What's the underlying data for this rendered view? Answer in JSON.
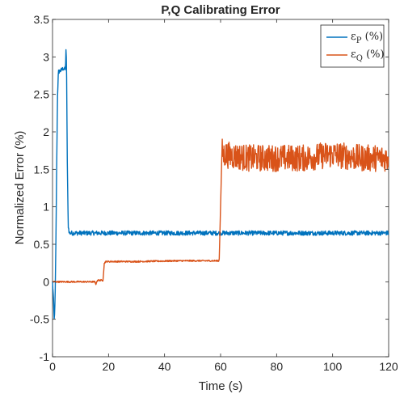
{
  "chart_data": {
    "type": "line",
    "title": "P,Q Calibrating Error",
    "xlabel": "Time (s)",
    "ylabel": "Normalized Error (%)",
    "xlim": [
      0,
      120
    ],
    "ylim": [
      -1,
      3.5
    ],
    "xticks": [
      0,
      20,
      40,
      60,
      80,
      100,
      120
    ],
    "yticks": [
      -1,
      -0.5,
      0,
      0.5,
      1,
      1.5,
      2,
      2.5,
      3,
      3.5
    ],
    "grid": false,
    "legend_position": "top-right",
    "series": [
      {
        "name": "εP (%)",
        "symbol": "ε",
        "subscript": "P",
        "suffix": " (%)",
        "color": "#0072BD",
        "noise_amplitude": 0.03,
        "points": [
          [
            0,
            0.0
          ],
          [
            0.3,
            -0.2
          ],
          [
            0.6,
            -0.5
          ],
          [
            0.9,
            -0.3
          ],
          [
            1.2,
            0.5
          ],
          [
            1.5,
            1.6
          ],
          [
            1.8,
            2.5
          ],
          [
            2.1,
            2.8
          ],
          [
            3,
            2.82
          ],
          [
            4,
            2.85
          ],
          [
            4.6,
            2.82
          ],
          [
            4.8,
            3.1
          ],
          [
            5,
            2.9
          ],
          [
            5.3,
            1.5
          ],
          [
            5.6,
            0.75
          ],
          [
            6,
            0.65
          ],
          [
            10,
            0.65
          ],
          [
            20,
            0.65
          ],
          [
            40,
            0.65
          ],
          [
            60,
            0.65
          ],
          [
            80,
            0.65
          ],
          [
            100,
            0.65
          ],
          [
            120,
            0.65
          ]
        ]
      },
      {
        "name": "εQ (%)",
        "symbol": "ε",
        "subscript": "Q",
        "suffix": " (%)",
        "color": "#D95319",
        "noise_amplitude": 0.01,
        "points": [
          [
            0,
            0.0
          ],
          [
            15,
            0.0
          ],
          [
            15.5,
            -0.03
          ],
          [
            16,
            0.02
          ],
          [
            17,
            0.02
          ],
          [
            18,
            0.02
          ],
          [
            18.5,
            0.25
          ],
          [
            19,
            0.27
          ],
          [
            30,
            0.27
          ],
          [
            45,
            0.28
          ],
          [
            59.5,
            0.28
          ],
          [
            60.5,
            1.75
          ],
          [
            61,
            1.7
          ],
          [
            70,
            1.65
          ],
          [
            80,
            1.65
          ],
          [
            90,
            1.65
          ],
          [
            100,
            1.7
          ],
          [
            110,
            1.65
          ],
          [
            120,
            1.65
          ]
        ],
        "noisy_segments": [
          [
            60.5,
            120,
            0.18
          ]
        ]
      }
    ]
  }
}
